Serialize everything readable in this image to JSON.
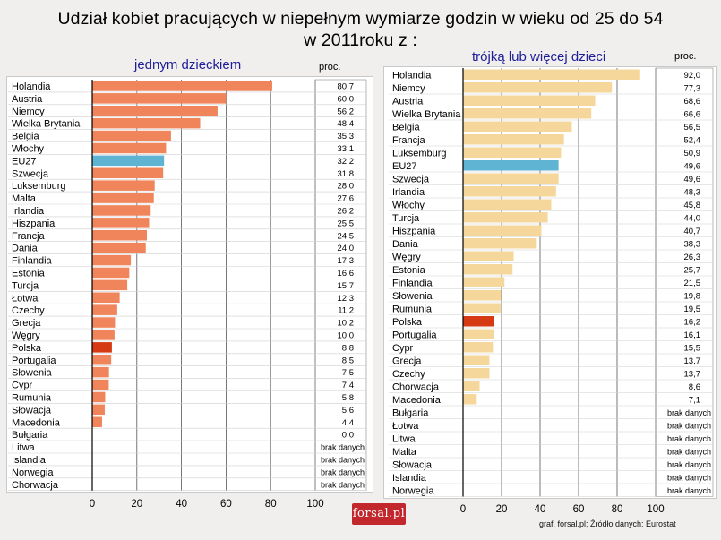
{
  "title_line1": "Udział kobiet pracujących w niepełnym wymiarze godzin w wieku od 25 do 54",
  "title_line2": "w  2011roku  z :",
  "logo_text": "forsal.pl",
  "footer": "graf. forsal.pl;    Źródło danych: Eurostat",
  "colors": {
    "left_bar": "#f0845a",
    "right_bar": "#f5d79b",
    "eu_bar": "#5fb4d4",
    "poland_bar": "#d63a14"
  },
  "chart_data": [
    {
      "type": "bar",
      "orientation": "horizontal",
      "subtitle": "jednym dzieckiem",
      "value_header": "proc.",
      "xlim": [
        0,
        100
      ],
      "xticks": [
        0,
        20,
        40,
        60,
        80,
        100
      ],
      "grid": true,
      "categories": [
        "Holandia",
        "Austria",
        "Niemcy",
        "Wielka Brytania",
        "Belgia",
        "Włochy",
        "EU27",
        "Szwecja",
        "Luksemburg",
        "Malta",
        "Irlandia",
        "Hiszpania",
        "Francja",
        "Dania",
        "Finlandia",
        "Estonia",
        "Turcja",
        "Łotwa",
        "Czechy",
        "Grecja",
        "Węgry",
        "Polska",
        "Portugalia",
        "Słowenia",
        "Cypr",
        "Rumunia",
        "Słowacja",
        "Macedonia",
        "Bułgaria",
        "Litwa",
        "Islandia",
        "Norwegia",
        "Chorwacja"
      ],
      "values": [
        80.7,
        60.0,
        56.2,
        48.4,
        35.3,
        33.1,
        32.2,
        31.8,
        28.0,
        27.6,
        26.2,
        25.5,
        24.5,
        24.0,
        17.3,
        16.6,
        15.7,
        12.3,
        11.2,
        10.2,
        10.0,
        8.8,
        8.5,
        7.5,
        7.4,
        5.8,
        5.6,
        4.4,
        0.0,
        null,
        null,
        null,
        null
      ],
      "labels": [
        "80,7",
        "60,0",
        "56,2",
        "48,4",
        "35,3",
        "33,1",
        "32,2",
        "31,8",
        "28,0",
        "27,6",
        "26,2",
        "25,5",
        "24,5",
        "24,0",
        "17,3",
        "16,6",
        "15,7",
        "12,3",
        "11,2",
        "10,2",
        "10,0",
        "8,8",
        "8,5",
        "7,5",
        "7,4",
        "5,8",
        "5,6",
        "4,4",
        "0,0",
        "brak danych",
        "brak danych",
        "brak danych",
        "brak danych"
      ]
    },
    {
      "type": "bar",
      "orientation": "horizontal",
      "subtitle": "trójką lub więcej dzieci",
      "value_header": "proc.",
      "xlim": [
        0,
        100
      ],
      "xticks": [
        0,
        20,
        40,
        60,
        80,
        100
      ],
      "grid": true,
      "categories": [
        "Holandia",
        "Niemcy",
        "Austria",
        "Wielka Brytania",
        "Belgia",
        "Francja",
        "Luksemburg",
        "EU27",
        "Szwecja",
        "Irlandia",
        "Włochy",
        "Turcja",
        "Hiszpania",
        "Dania",
        "Węgry",
        "Estonia",
        "Finlandia",
        "Słowenia",
        "Rumunia",
        "Polska",
        "Portugalia",
        "Cypr",
        "Grecja",
        "Czechy",
        "Chorwacja",
        "Macedonia",
        "Bułgaria",
        "Łotwa",
        "Litwa",
        "Malta",
        "Słowacja",
        "Islandia",
        "Norwegia"
      ],
      "values": [
        92.0,
        77.3,
        68.6,
        66.6,
        56.5,
        52.4,
        50.9,
        49.6,
        49.6,
        48.3,
        45.8,
        44.0,
        40.7,
        38.3,
        26.3,
        25.7,
        21.5,
        19.8,
        19.5,
        16.2,
        16.1,
        15.5,
        13.7,
        13.7,
        8.6,
        7.1,
        null,
        null,
        null,
        null,
        null,
        null,
        null
      ],
      "labels": [
        "92,0",
        "77,3",
        "68,6",
        "66,6",
        "56,5",
        "52,4",
        "50,9",
        "49,6",
        "49,6",
        "48,3",
        "45,8",
        "44,0",
        "40,7",
        "38,3",
        "26,3",
        "25,7",
        "21,5",
        "19,8",
        "19,5",
        "16,2",
        "16,1",
        "15,5",
        "13,7",
        "13,7",
        "8,6",
        "7,1",
        "brak danych",
        "brak danych",
        "brak danych",
        "brak danych",
        "brak danych",
        "brak danych",
        "brak danych"
      ]
    }
  ]
}
